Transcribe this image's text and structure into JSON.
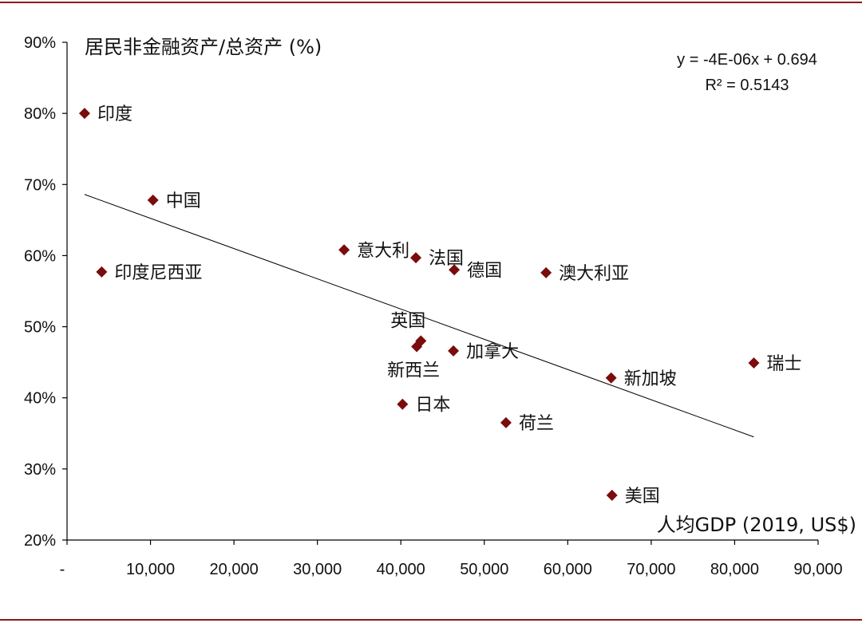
{
  "chart_data": {
    "type": "scatter",
    "ylabel": "居民非金融资产/总资产 (%)",
    "xlabel": "人均GDP (2019, US$)",
    "xlim": [
      0,
      90000
    ],
    "ylim": [
      20,
      90
    ],
    "x_ticks": [
      "-",
      "10,000",
      "20,000",
      "30,000",
      "40,000",
      "50,000",
      "60,000",
      "70,000",
      "80,000",
      "90,000"
    ],
    "y_ticks": [
      "20%",
      "30%",
      "40%",
      "50%",
      "60%",
      "70%",
      "80%",
      "90%"
    ],
    "points": [
      {
        "label": "印度",
        "x": 2100,
        "y": 80.0
      },
      {
        "label": "中国",
        "x": 10300,
        "y": 67.8
      },
      {
        "label": "印度尼西亚",
        "x": 4150,
        "y": 57.7
      },
      {
        "label": "意大利",
        "x": 33200,
        "y": 60.8
      },
      {
        "label": "法国",
        "x": 41800,
        "y": 59.7
      },
      {
        "label": "德国",
        "x": 46400,
        "y": 58.0
      },
      {
        "label": "澳大利亚",
        "x": 57400,
        "y": 57.6
      },
      {
        "label": "英国",
        "x": 42400,
        "y": 48.0
      },
      {
        "label": "新西兰",
        "x": 41900,
        "y": 47.2
      },
      {
        "label": "加拿大",
        "x": 46300,
        "y": 46.6
      },
      {
        "label": "新加坡",
        "x": 65200,
        "y": 42.8
      },
      {
        "label": "瑞士",
        "x": 82300,
        "y": 44.9
      },
      {
        "label": "日本",
        "x": 40200,
        "y": 39.1
      },
      {
        "label": "荷兰",
        "x": 52600,
        "y": 36.5
      },
      {
        "label": "美国",
        "x": 65300,
        "y": 26.3
      }
    ],
    "trendline": {
      "equation": "y = -4E-06x + 0.694",
      "r2": "R² = 0.5143",
      "from": [
        2100,
        68.6
      ],
      "to": [
        82300,
        34.5
      ]
    },
    "marker_color": "#7a0c0c",
    "frame_color": "#8b1a1a"
  }
}
